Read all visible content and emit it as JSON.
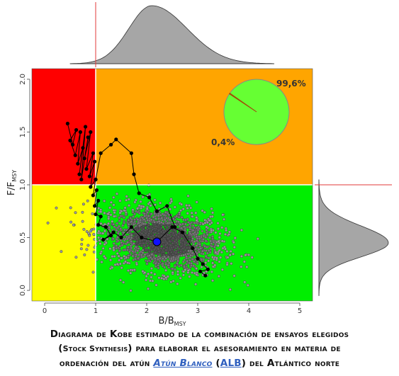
{
  "chart_data": {
    "type": "scatter",
    "xlabel": "B/B",
    "xlabel_sub": "MSY",
    "ylabel": "F/F",
    "ylabel_sub": "MSY",
    "xlim": [
      -0.25,
      5.25
    ],
    "ylim": [
      -0.1,
      2.1
    ],
    "x_ticks": [
      "0",
      "1",
      "2",
      "3",
      "4",
      "5"
    ],
    "x_tick_values": [
      0,
      1,
      2,
      3,
      4,
      5
    ],
    "y_ticks": [
      "0.0",
      "0.5",
      "1.0",
      "1.5",
      "2.0"
    ],
    "y_tick_values": [
      0.0,
      0.5,
      1.0,
      1.5,
      2.0
    ],
    "reference_lines": {
      "x": 1.0,
      "y": 1.0
    },
    "quadrant_colors": {
      "top_left": "#ff0000",
      "top_right": "#ffa500",
      "bottom_left": "#ffff00",
      "bottom_right": "#00ee00"
    },
    "current_point": {
      "x": 2.2,
      "y": 0.46
    },
    "trajectory": [
      [
        0.45,
        1.58
      ],
      [
        0.55,
        1.38
      ],
      [
        0.62,
        1.52
      ],
      [
        0.5,
        1.42
      ],
      [
        0.6,
        1.28
      ],
      [
        0.7,
        1.5
      ],
      [
        0.65,
        1.2
      ],
      [
        0.75,
        1.35
      ],
      [
        0.68,
        1.1
      ],
      [
        0.8,
        1.55
      ],
      [
        0.72,
        1.05
      ],
      [
        0.85,
        1.45
      ],
      [
        0.78,
        1.25
      ],
      [
        0.9,
        1.5
      ],
      [
        0.82,
        1.15
      ],
      [
        0.95,
        1.3
      ],
      [
        0.88,
        1.08
      ],
      [
        0.98,
        1.22
      ],
      [
        0.9,
        0.98
      ],
      [
        1.0,
        1.05
      ],
      [
        0.95,
        0.9
      ],
      [
        1.02,
        0.95
      ],
      [
        0.98,
        0.8
      ],
      [
        1.05,
        0.85
      ],
      [
        1.0,
        0.72
      ],
      [
        1.1,
        0.7
      ],
      [
        1.05,
        0.62
      ],
      [
        1.2,
        0.6
      ],
      [
        1.3,
        0.52
      ],
      [
        1.15,
        0.48
      ],
      [
        1.35,
        0.55
      ],
      [
        1.5,
        0.5
      ],
      [
        1.7,
        0.6
      ],
      [
        1.9,
        0.5
      ],
      [
        2.2,
        0.46
      ],
      [
        2.5,
        0.6
      ],
      [
        2.7,
        0.55
      ],
      [
        2.9,
        0.4
      ],
      [
        3.0,
        0.3
      ],
      [
        3.1,
        0.25
      ],
      [
        3.2,
        0.2
      ],
      [
        3.05,
        0.18
      ],
      [
        3.15,
        0.14
      ]
    ],
    "early_path": [
      [
        1.0,
        1.05
      ],
      [
        1.1,
        1.3
      ],
      [
        1.3,
        1.38
      ],
      [
        1.4,
        1.43
      ],
      [
        1.7,
        1.3
      ],
      [
        1.75,
        1.1
      ],
      [
        1.85,
        0.92
      ],
      [
        2.05,
        0.88
      ],
      [
        2.2,
        0.75
      ],
      [
        2.4,
        0.8
      ],
      [
        2.55,
        0.6
      ]
    ],
    "cloud": {
      "center_x": 2.3,
      "center_y": 0.48,
      "spread_x": 0.85,
      "spread_y": 0.17,
      "n_points": 1800
    },
    "pie": {
      "slices": [
        {
          "label": "99,6%",
          "value": 99.6,
          "color": "#66ff33"
        },
        {
          "label": "0,4%",
          "value": 0.4,
          "color": "#cc6600"
        }
      ]
    },
    "marginal_x": {
      "type": "density",
      "peak": 2.1,
      "spread": 0.6
    },
    "marginal_y": {
      "type": "density",
      "peak": 0.45,
      "spread": 0.14
    }
  },
  "caption": {
    "line1": "Diagrama de Kobe estimado de la combinación de ensayos elegidos",
    "line2_pre": "(",
    "line2_small": "Stock Synthesis",
    "line2_post": ") para elaborar el asesoramiento en materia de",
    "line3_pre": "ordenación del atún ",
    "line3_link": "Atún Blanco",
    "line3_mid": " (",
    "line3_code": "ALB",
    "line3_post": ") del Atlántico norte"
  }
}
